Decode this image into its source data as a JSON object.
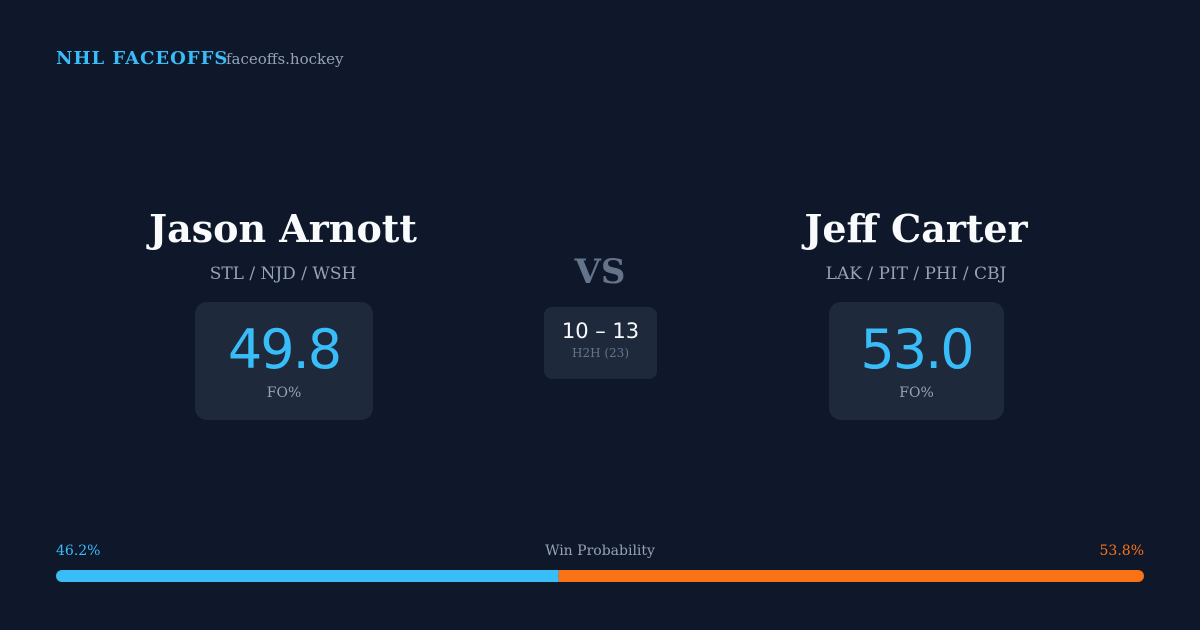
{
  "header": {
    "brand": "NHL FACEOFFS",
    "site": "faceoffs.hockey"
  },
  "players": [
    {
      "name": "Jason Arnott",
      "teams": "STL / NJD / WSH",
      "fo_pct": "49.8",
      "fo_label": "FO%"
    },
    {
      "name": "Jeff Carter",
      "teams": "LAK / PIT / PHI / CBJ",
      "fo_pct": "53.0",
      "fo_label": "FO%"
    }
  ],
  "versus": {
    "label": "VS",
    "score": "10 – 13",
    "h2h": "H2H (23)"
  },
  "win_probability": {
    "label": "Win Probability",
    "values": [
      46.2,
      53.8
    ],
    "value_labels": [
      "46.2%",
      "53.8%"
    ],
    "colors": [
      "#38bdf8",
      "#f97316"
    ]
  }
}
